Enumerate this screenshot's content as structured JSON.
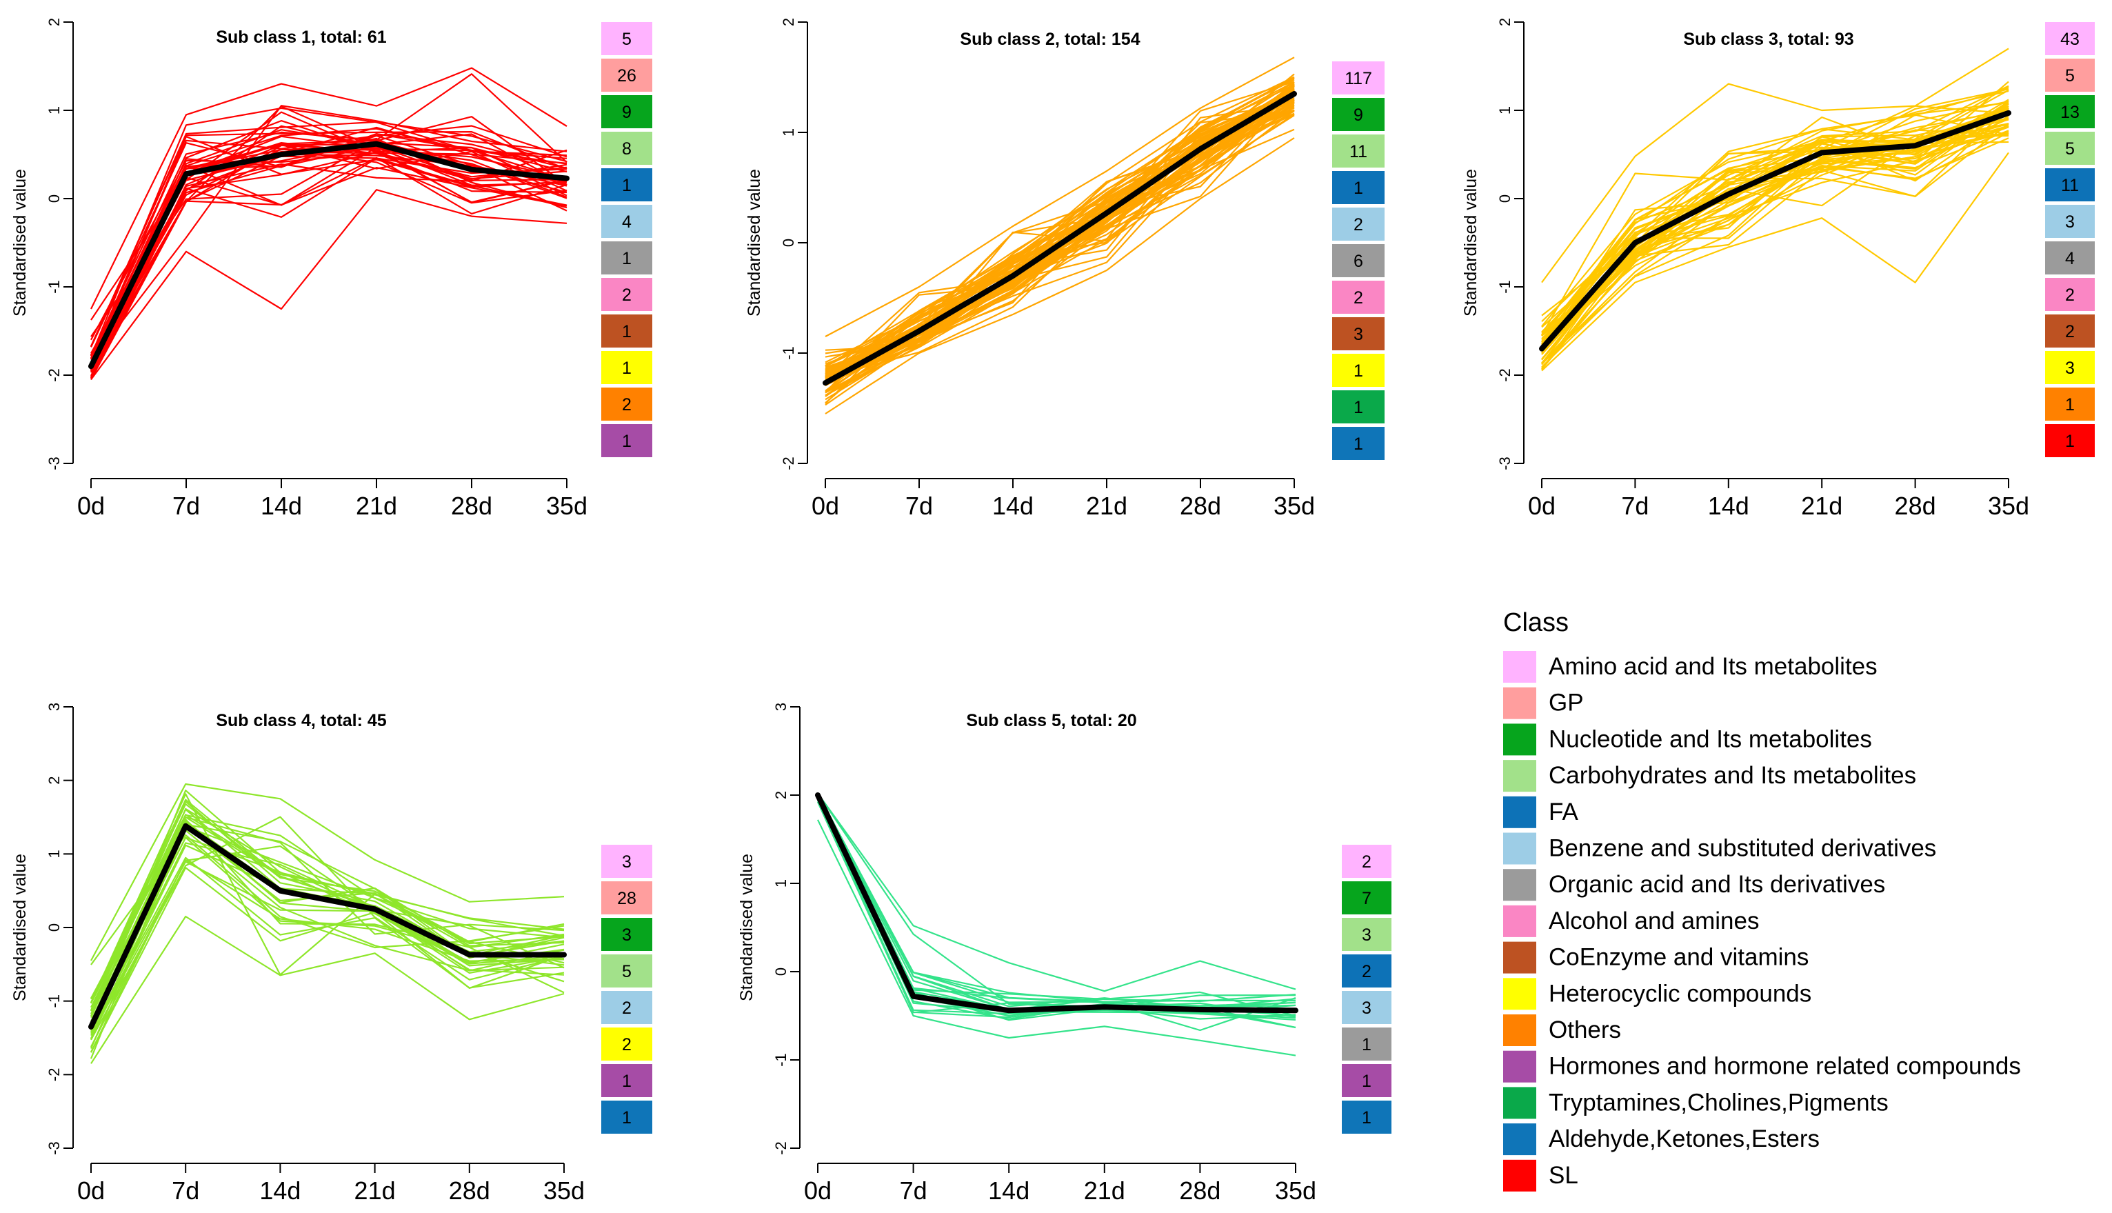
{
  "chart_data": [
    {
      "type": "line",
      "title": "Sub class 1, total: 61",
      "ylabel": "Standardised value",
      "xlabel": "",
      "categories": [
        "0d",
        "7d",
        "14d",
        "21d",
        "28d",
        "35d"
      ],
      "ylim": [
        -3,
        2
      ],
      "yticks": [
        -3,
        -2,
        -1,
        0,
        1,
        2
      ],
      "line_color": "#ff0000",
      "series": [
        {
          "name": "Mean",
          "values": [
            -1.9,
            0.28,
            0.5,
            0.62,
            0.33,
            0.23
          ]
        }
      ],
      "band": [
        [
          -2.05,
          -1.25
        ],
        [
          -0.6,
          0.95
        ],
        [
          -1.25,
          1.3
        ],
        [
          0.1,
          1.05
        ],
        [
          -0.2,
          1.48
        ],
        [
          -0.28,
          0.82
        ]
      ],
      "class_counts": [
        {
          "class": "Amino acid and Its metabolites",
          "count": "5"
        },
        {
          "class": "GP",
          "count": "26"
        },
        {
          "class": "Nucleotide and Its metabolites",
          "count": "9"
        },
        {
          "class": "Carbohydrates and Its metabolites",
          "count": "8"
        },
        {
          "class": "FA",
          "count": "1"
        },
        {
          "class": "Benzene and substituted derivatives",
          "count": "4"
        },
        {
          "class": "Organic acid and Its derivatives",
          "count": "1"
        },
        {
          "class": "Alcohol and amines",
          "count": "2"
        },
        {
          "class": "CoEnzyme and vitamins",
          "count": "1"
        },
        {
          "class": "Heterocyclic compounds",
          "count": "1"
        },
        {
          "class": "Others",
          "count": "2"
        },
        {
          "class": "Hormones and hormone related compounds",
          "count": "1"
        }
      ]
    },
    {
      "type": "line",
      "title": "Sub class 2, total: 154",
      "ylabel": "Standardised value",
      "xlabel": "",
      "categories": [
        "0d",
        "7d",
        "14d",
        "21d",
        "28d",
        "35d"
      ],
      "ylim": [
        -2,
        2
      ],
      "yticks": [
        -2,
        -1,
        0,
        1,
        2
      ],
      "line_color": "#ffa500",
      "series": [
        {
          "name": "Mean",
          "values": [
            -1.27,
            -0.8,
            -0.3,
            0.27,
            0.85,
            1.35
          ]
        }
      ],
      "band": [
        [
          -1.55,
          -0.85
        ],
        [
          -1.0,
          -0.4
        ],
        [
          -0.65,
          0.15
        ],
        [
          -0.25,
          0.65
        ],
        [
          0.4,
          1.22
        ],
        [
          0.95,
          1.68
        ]
      ],
      "class_counts": [
        {
          "class": "Amino acid and Its metabolites",
          "count": "117"
        },
        {
          "class": "Nucleotide and Its metabolites",
          "count": "9"
        },
        {
          "class": "Carbohydrates and Its metabolites",
          "count": "11"
        },
        {
          "class": "FA",
          "count": "1"
        },
        {
          "class": "Benzene and substituted derivatives",
          "count": "2"
        },
        {
          "class": "Organic acid and Its derivatives",
          "count": "6"
        },
        {
          "class": "Alcohol and amines",
          "count": "2"
        },
        {
          "class": "CoEnzyme and vitamins",
          "count": "3"
        },
        {
          "class": "Heterocyclic compounds",
          "count": "1"
        },
        {
          "class": "Tryptamines,Cholines,Pigments",
          "count": "1"
        },
        {
          "class": "Aldehyde,Ketones,Esters",
          "count": "1"
        }
      ]
    },
    {
      "type": "line",
      "title": "Sub class 3, total: 93",
      "ylabel": "Standardised value",
      "xlabel": "",
      "categories": [
        "0d",
        "7d",
        "14d",
        "21d",
        "28d",
        "35d"
      ],
      "ylim": [
        -3,
        2
      ],
      "yticks": [
        -3,
        -2,
        -1,
        0,
        1,
        2
      ],
      "line_color": "#ffc800",
      "series": [
        {
          "name": "Mean",
          "values": [
            -1.7,
            -0.5,
            0.05,
            0.52,
            0.6,
            0.97
          ]
        }
      ],
      "band": [
        [
          -1.95,
          -0.95
        ],
        [
          -0.95,
          0.48
        ],
        [
          -0.55,
          1.3
        ],
        [
          -0.22,
          1.0
        ],
        [
          -0.95,
          1.05
        ],
        [
          0.52,
          1.7
        ]
      ],
      "class_counts": [
        {
          "class": "Amino acid and Its metabolites",
          "count": "43"
        },
        {
          "class": "GP",
          "count": "5"
        },
        {
          "class": "Nucleotide and Its metabolites",
          "count": "13"
        },
        {
          "class": "Carbohydrates and Its metabolites",
          "count": "5"
        },
        {
          "class": "FA",
          "count": "11"
        },
        {
          "class": "Benzene and substituted derivatives",
          "count": "3"
        },
        {
          "class": "Organic acid and Its derivatives",
          "count": "4"
        },
        {
          "class": "Alcohol and amines",
          "count": "2"
        },
        {
          "class": "CoEnzyme and vitamins",
          "count": "2"
        },
        {
          "class": "Heterocyclic compounds",
          "count": "3"
        },
        {
          "class": "Others",
          "count": "1"
        },
        {
          "class": "SL",
          "count": "1"
        }
      ]
    },
    {
      "type": "line",
      "title": "Sub class 4, total: 45",
      "ylabel": "Standardised value",
      "xlabel": "",
      "categories": [
        "0d",
        "7d",
        "14d",
        "21d",
        "28d",
        "35d"
      ],
      "ylim": [
        -3,
        3
      ],
      "yticks": [
        -3,
        -2,
        -1,
        0,
        1,
        2,
        3
      ],
      "line_color": "#8ee62a",
      "series": [
        {
          "name": "Mean",
          "values": [
            -1.35,
            1.38,
            0.5,
            0.25,
            -0.37,
            -0.37
          ]
        }
      ],
      "band": [
        [
          -1.85,
          -0.45
        ],
        [
          0.15,
          1.95
        ],
        [
          -0.65,
          1.75
        ],
        [
          -0.35,
          0.92
        ],
        [
          -1.25,
          0.35
        ],
        [
          -0.9,
          0.42
        ]
      ],
      "class_counts": [
        {
          "class": "Amino acid and Its metabolites",
          "count": "3"
        },
        {
          "class": "GP",
          "count": "28"
        },
        {
          "class": "Nucleotide and Its metabolites",
          "count": "3"
        },
        {
          "class": "Carbohydrates and Its metabolites",
          "count": "5"
        },
        {
          "class": "Benzene and substituted derivatives",
          "count": "2"
        },
        {
          "class": "Heterocyclic compounds",
          "count": "2"
        },
        {
          "class": "Hormones and hormone related compounds",
          "count": "1"
        },
        {
          "class": "Aldehyde,Ketones,Esters",
          "count": "1"
        }
      ]
    },
    {
      "type": "line",
      "title": "Sub class 5, total: 20",
      "ylabel": "Standardised value",
      "xlabel": "",
      "categories": [
        "0d",
        "7d",
        "14d",
        "21d",
        "28d",
        "35d"
      ],
      "ylim": [
        -2,
        3
      ],
      "yticks": [
        -2,
        -1,
        0,
        1,
        2,
        3
      ],
      "line_color": "#33e38a",
      "series": [
        {
          "name": "Mean",
          "values": [
            2.0,
            -0.28,
            -0.44,
            -0.4,
            -0.43,
            -0.44
          ]
        }
      ],
      "band": [
        [
          1.72,
          2.02
        ],
        [
          -0.5,
          0.52
        ],
        [
          -0.75,
          0.1
        ],
        [
          -0.62,
          -0.22
        ],
        [
          -0.78,
          0.12
        ],
        [
          -0.95,
          -0.2
        ]
      ],
      "class_counts": [
        {
          "class": "Amino acid and Its metabolites",
          "count": "2"
        },
        {
          "class": "Nucleotide and Its metabolites",
          "count": "7"
        },
        {
          "class": "Carbohydrates and Its metabolites",
          "count": "3"
        },
        {
          "class": "FA",
          "count": "2"
        },
        {
          "class": "Benzene and substituted derivatives",
          "count": "3"
        },
        {
          "class": "Organic acid and Its derivatives",
          "count": "1"
        },
        {
          "class": "Hormones and hormone related compounds",
          "count": "1"
        },
        {
          "class": "Aldehyde,Ketones,Esters",
          "count": "1"
        }
      ]
    }
  ],
  "legend": {
    "title": "Class",
    "items": [
      {
        "label": "Amino acid and Its metabolites",
        "color": "#ffb3ff"
      },
      {
        "label": "GP",
        "color": "#ff9e9e"
      },
      {
        "label": "Nucleotide and Its metabolites",
        "color": "#06a51d"
      },
      {
        "label": "Carbohydrates and Its metabolites",
        "color": "#a2e18a"
      },
      {
        "label": "FA",
        "color": "#0d72b7"
      },
      {
        "label": "Benzene and substituted derivatives",
        "color": "#9dcde6"
      },
      {
        "label": "Organic acid and Its derivatives",
        "color": "#9b9b9b"
      },
      {
        "label": "Alcohol and amines",
        "color": "#fa86c4"
      },
      {
        "label": "CoEnzyme and vitamins",
        "color": "#bd5222"
      },
      {
        "label": "Heterocyclic compounds",
        "color": "#ffff00"
      },
      {
        "label": "Others",
        "color": "#ff8100"
      },
      {
        "label": "Hormones and hormone related compounds",
        "color": "#a64ca6"
      },
      {
        "label": "Tryptamines,Cholines,Pigments",
        "color": "#0aa94a"
      },
      {
        "label": "Aldehyde,Ketones,Esters",
        "color": "#0f75b8"
      },
      {
        "label": "SL",
        "color": "#ff0000"
      }
    ]
  }
}
